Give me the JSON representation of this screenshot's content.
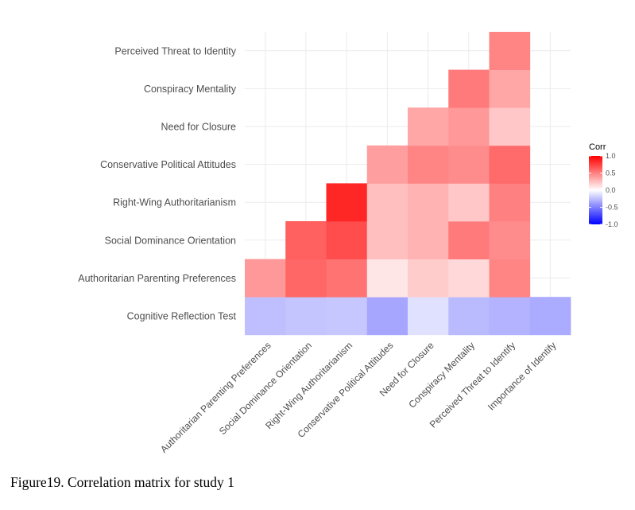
{
  "caption": "Figure19. Correlation matrix for study 1",
  "chart_data": {
    "type": "heatmap",
    "title": "",
    "xlabel": "",
    "ylabel": "",
    "x_categories": [
      "Authoritarian Parenting Preferences",
      "Social Dominance Orientation",
      "Right-Wing Authoritarianism",
      "Conservative Political Attitudes",
      "Need for Closure",
      "Conspiracy Mentality",
      "Perceived Threat to Identify",
      "Importance of Identify"
    ],
    "y_categories": [
      "Cognitive Reflection Test",
      "Authoritarian Parenting Preferences",
      "Social Dominance Orientation",
      "Right-Wing Authoritarianism",
      "Conservative Political Attitudes",
      "Need for Closure",
      "Conspiracy Mentality",
      "Perceived Threat to Identity"
    ],
    "values": [
      [
        -0.25,
        -0.23,
        -0.22,
        -0.35,
        -0.12,
        -0.27,
        -0.3,
        -0.33
      ],
      [
        0.4,
        0.6,
        0.55,
        0.1,
        0.2,
        0.15,
        0.48,
        null
      ],
      [
        null,
        0.62,
        0.7,
        0.25,
        0.3,
        0.52,
        0.45,
        null
      ],
      [
        null,
        null,
        0.85,
        0.25,
        0.3,
        0.22,
        0.5,
        null
      ],
      [
        null,
        null,
        null,
        0.38,
        0.48,
        0.45,
        0.58,
        null
      ],
      [
        null,
        null,
        null,
        null,
        0.35,
        0.4,
        0.22,
        null
      ],
      [
        null,
        null,
        null,
        null,
        null,
        0.52,
        0.35,
        null
      ],
      [
        null,
        null,
        null,
        null,
        null,
        null,
        0.48,
        null
      ]
    ],
    "legend": {
      "title": "Corr",
      "ticks": [
        1.0,
        0.5,
        0.0,
        -0.5,
        -1.0
      ],
      "tick_labels": [
        "1.0",
        "0.5",
        "0.0",
        "-0.5",
        "-1.0"
      ],
      "position": "right"
    },
    "colors": {
      "low": "#0000ff",
      "mid": "#ffffff",
      "high": "#ff0000"
    },
    "grid": true
  }
}
